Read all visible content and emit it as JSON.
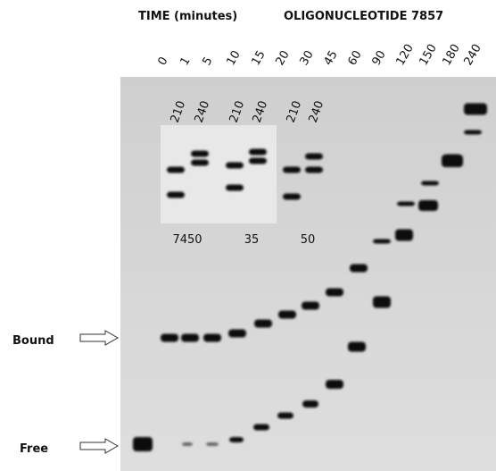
{
  "header": {
    "time_label": "TIME (minutes)",
    "oligo_label": "OLIGONUCLEOTIDE 7857"
  },
  "lanes": [
    "0",
    "1",
    "5",
    "10",
    "15",
    "20",
    "30",
    "45",
    "60",
    "90",
    "120",
    "150",
    "180",
    "240"
  ],
  "insets": [
    {
      "lanes": [
        "210",
        "240"
      ],
      "label": "7450"
    },
    {
      "lanes": [
        "210",
        "240"
      ],
      "label": "35"
    },
    {
      "lanes": [
        "210",
        "240"
      ],
      "label": "50"
    }
  ],
  "markers": {
    "bound": "Bound",
    "free": "Free"
  }
}
